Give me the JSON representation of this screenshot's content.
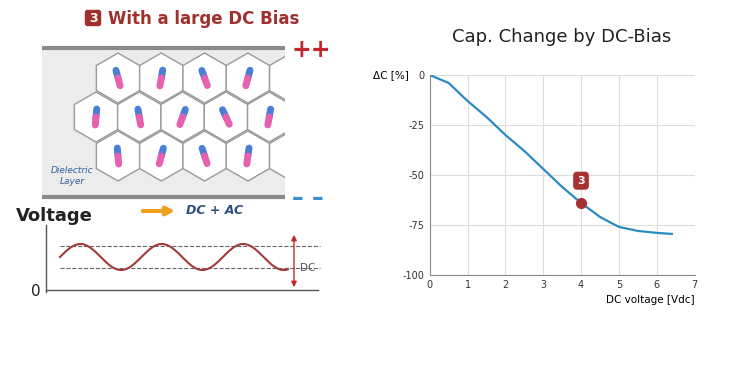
{
  "chart_data": {
    "type": "line",
    "title": "Cap. Change by DC-Bias",
    "x_label": "DC voltage [Vdc]",
    "y_label": "ΔC [%]",
    "x": [
      0,
      0.5,
      1,
      1.5,
      2,
      2.5,
      3,
      3.5,
      4,
      4.5,
      5,
      5.5,
      6,
      6.4
    ],
    "values": [
      0,
      -4,
      -13,
      -21,
      -30,
      -38,
      -47,
      -56,
      -64,
      -71,
      -76,
      -78,
      -79,
      -79.5
    ],
    "color": "#2a8bc4",
    "xlim": [
      0,
      7
    ],
    "xticks": [
      0,
      1,
      2,
      3,
      4,
      5,
      6,
      7
    ],
    "ylim": [
      -100,
      0
    ],
    "yticks": [
      0,
      -25,
      -50,
      -75,
      -100
    ],
    "grid": true,
    "annotations": [
      {
        "x": 4,
        "y": -64,
        "label": "3",
        "color": "#a83232"
      }
    ]
  },
  "diagram": {
    "badge": "3",
    "heading": "With a large DC Bias",
    "top_plate": "++",
    "bottom_plate": "– –",
    "layer_label": "Dielectric\nLayer",
    "arrow_label": "DC + AC",
    "waveform": {
      "title": "Voltage",
      "zero": "0",
      "dc_label": "DC"
    }
  }
}
